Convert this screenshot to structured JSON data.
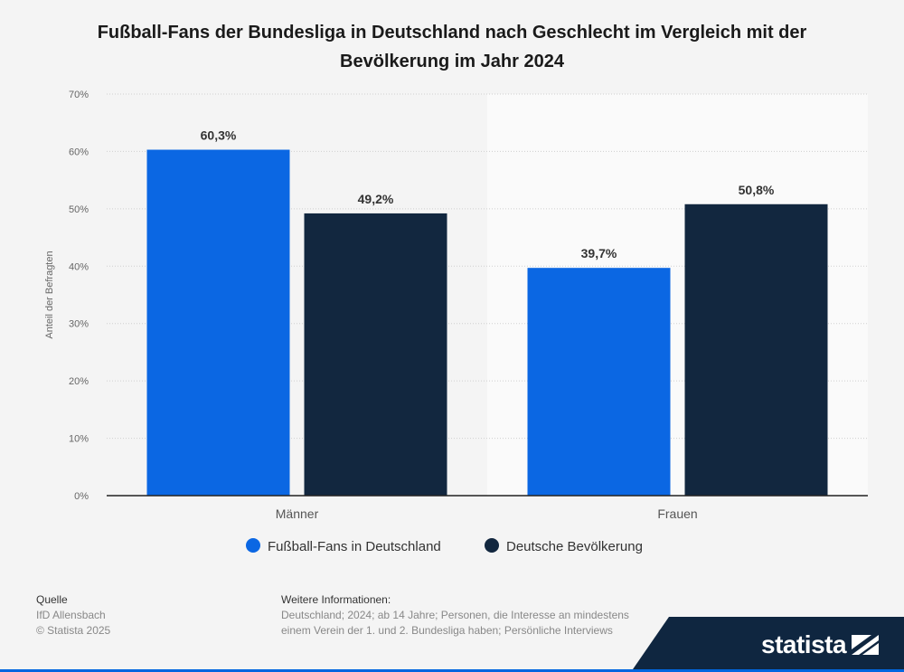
{
  "title": "Fußball-Fans der Bundesliga in Deutschland nach Geschlecht im Vergleich mit der Bevölkerung im Jahr 2024",
  "chart_data": {
    "type": "bar",
    "title": "Fußball-Fans der Bundesliga in Deutschland nach Geschlecht im Vergleich mit der Bevölkerung im Jahr 2024",
    "categories": [
      "Männer",
      "Frauen"
    ],
    "series": [
      {
        "name": "Fußball-Fans in Deutschland",
        "values": [
          60.3,
          39.7
        ],
        "labels": [
          "60,3%",
          "39,7%"
        ],
        "color": "#0b67e3"
      },
      {
        "name": "Deutsche Bevölkerung",
        "values": [
          49.2,
          50.8
        ],
        "labels": [
          "49,2%",
          "50,8%"
        ],
        "color": "#12273f"
      }
    ],
    "xlabel": "",
    "ylabel": "Anteil der Befragten",
    "ylim": [
      0,
      70
    ],
    "yticks": [
      0,
      10,
      20,
      30,
      40,
      50,
      60,
      70
    ],
    "ytick_labels": [
      "0%",
      "10%",
      "20%",
      "30%",
      "40%",
      "50%",
      "60%",
      "70%"
    ],
    "grid": true,
    "legend": "bottom"
  },
  "footer": {
    "source_heading": "Quelle",
    "source_lines": [
      "IfD Allensbach",
      "© Statista 2025"
    ],
    "info_heading": "Weitere Informationen:",
    "info_lines": [
      "Deutschland; 2024; ab 14 Jahre; Personen, die Interesse an mindestens",
      "einem Verein der 1. und 2. Bundesliga haben; Persönliche Interviews"
    ]
  },
  "brand": "statista"
}
